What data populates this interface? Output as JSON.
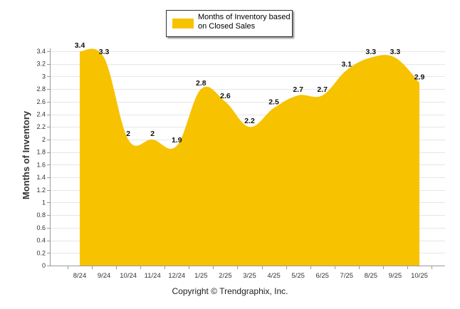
{
  "chart_data": {
    "type": "area",
    "title": "",
    "xlabel": "",
    "ylabel": "Months of Inventory",
    "ylim": [
      0,
      3.4
    ],
    "ytick_step": 0.2,
    "ytick_labels": [
      "0",
      "0.2",
      "0.4",
      "0.6",
      "0.8",
      "1",
      "1.2",
      "1.4",
      "1.6",
      "1.8",
      "2",
      "2.2",
      "2.4",
      "2.6",
      "2.8",
      "3",
      "3.2",
      "3.4"
    ],
    "grid": true,
    "legend_position": "top-center",
    "categories": [
      "8/24",
      "9/24",
      "10/24",
      "11/24",
      "12/24",
      "1/25",
      "2/25",
      "3/25",
      "4/25",
      "5/25",
      "6/25",
      "7/25",
      "8/25",
      "9/25",
      "10/25"
    ],
    "series": [
      {
        "name": "Months of Inventory based on Closed Sales",
        "color": "#F7C200",
        "values": [
          3.4,
          3.3,
          2,
          2,
          1.9,
          2.8,
          2.6,
          2.2,
          2.5,
          2.7,
          2.7,
          3.1,
          3.3,
          3.3,
          2.9
        ],
        "labels": [
          "3.4",
          "3.3",
          "2",
          "2",
          "1.9",
          "2.8",
          "2.6",
          "2.2",
          "2.5",
          "2.7",
          "2.7",
          "3.1",
          "3.3",
          "3.3",
          "2.9"
        ]
      }
    ]
  },
  "legend": {
    "label": "Months of Inventory based on Closed Sales"
  },
  "footer": {
    "copyright": "Copyright © Trendgraphix, Inc."
  }
}
